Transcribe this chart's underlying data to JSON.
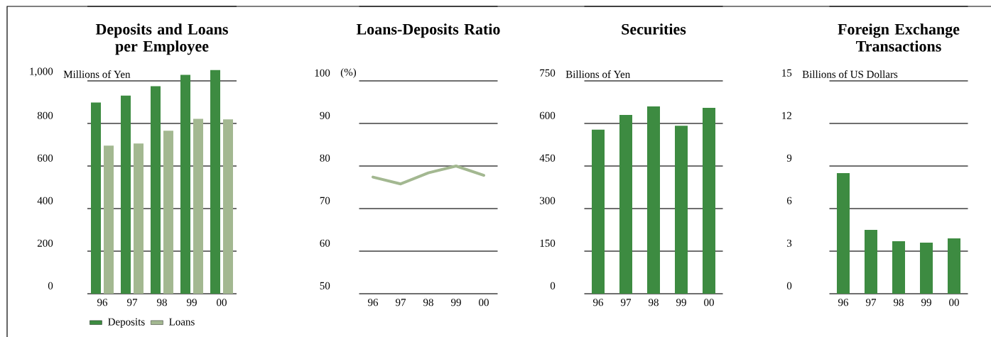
{
  "chart_data": [
    {
      "type": "bar",
      "title": "Deposits and Loans per Employee",
      "ylabel": "Millions of Yen",
      "categories": [
        "96",
        "97",
        "98",
        "99",
        "00"
      ],
      "series": [
        {
          "name": "Deposits",
          "color": "#3d8b41",
          "values": [
            898,
            931,
            975,
            1028,
            1051
          ]
        },
        {
          "name": "Loans",
          "color": "#a3b891",
          "values": [
            696,
            706,
            766,
            822,
            819
          ]
        }
      ],
      "ylim": [
        0,
        1350
      ],
      "yticks": [
        0,
        200,
        400,
        600,
        800,
        {
          "value": 1000,
          "label": "1,000"
        }
      ],
      "grid": "y",
      "legend": "bottom"
    },
    {
      "type": "line",
      "title": "Loans-Deposits Ratio",
      "ylabel": "(%)",
      "categories": [
        "96",
        "97",
        "98",
        "99",
        "00"
      ],
      "values": [
        77.4,
        75.8,
        78.4,
        80.0,
        77.8
      ],
      "color": "#a3b891",
      "line_style": "solid",
      "ylim": [
        50,
        117.5
      ],
      "yticks": [
        50,
        60,
        70,
        80,
        90,
        100
      ],
      "grid": "y"
    },
    {
      "type": "bar",
      "title": "Securities",
      "ylabel": "Billions of Yen",
      "categories": [
        "96",
        "97",
        "98",
        "99",
        "00"
      ],
      "values": [
        578,
        630,
        660,
        592,
        655
      ],
      "color": "#3d8b41",
      "ylim": [
        0,
        1012.5
      ],
      "yticks": [
        0,
        150,
        300,
        450,
        600,
        750
      ],
      "grid": "y"
    },
    {
      "type": "bar",
      "title": "Foreign Exchange Transactions",
      "ylabel": "Billions of US Dollars",
      "categories": [
        "96",
        "97",
        "98",
        "99",
        "00"
      ],
      "values": [
        8.5,
        4.5,
        3.7,
        3.6,
        3.9
      ],
      "color": "#3d8b41",
      "ylim": [
        0,
        20.25
      ],
      "yticks": [
        0,
        3,
        6,
        9,
        12,
        15
      ],
      "grid": "y"
    }
  ]
}
